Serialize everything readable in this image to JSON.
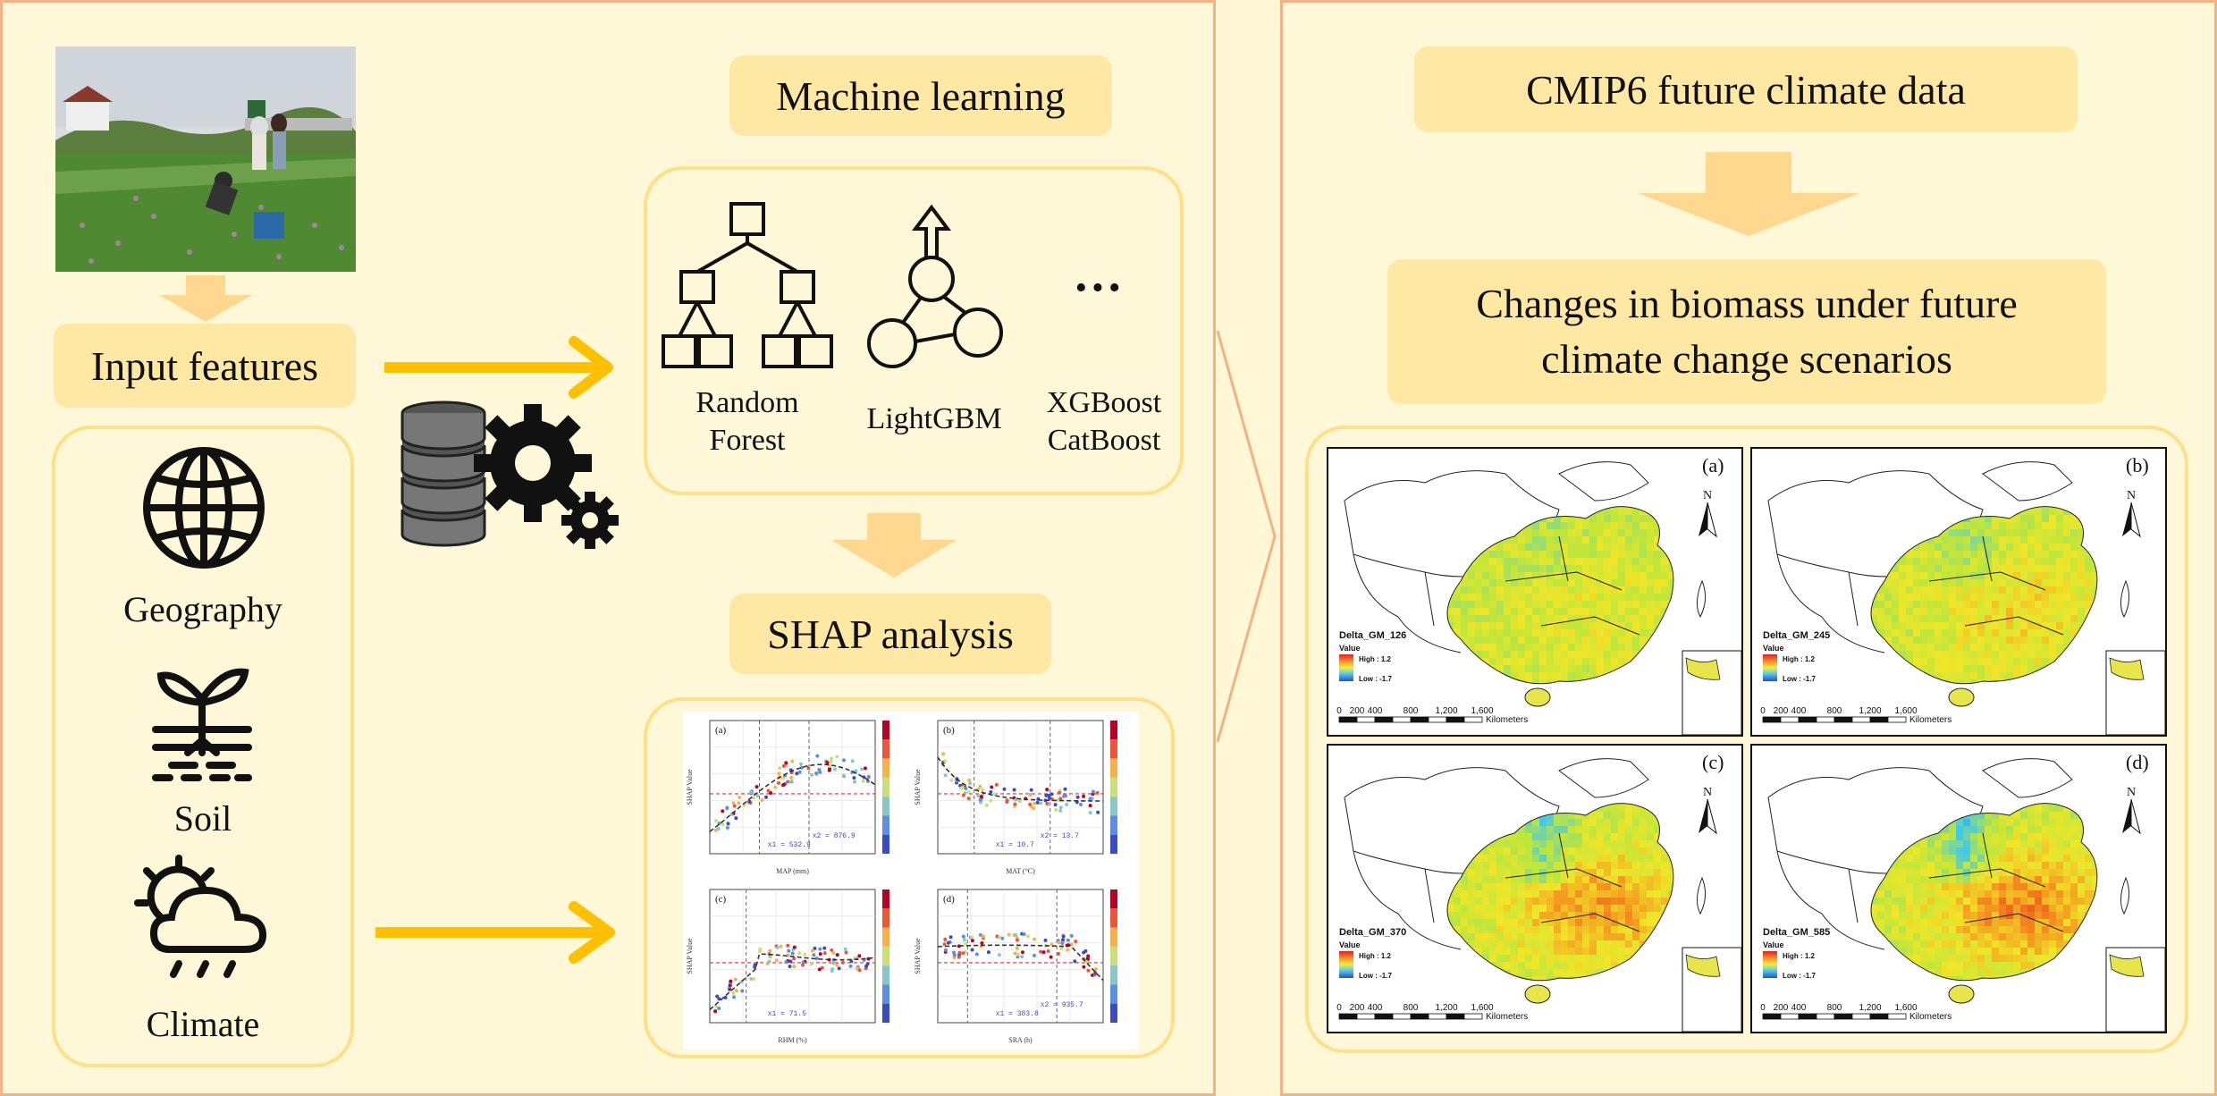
{
  "left_panel": {
    "input_features_label": "Input features",
    "feature_icons": [
      {
        "label": "Geography",
        "icon": "globe-icon"
      },
      {
        "label": "Soil",
        "icon": "seedling-soil-icon"
      },
      {
        "label": "Climate",
        "icon": "sun-cloud-rain-icon"
      }
    ],
    "machine_learning_label": "Machine learning",
    "models": [
      {
        "label_line1": "Random",
        "label_line2": "Forest",
        "icon": "decision-tree-icon"
      },
      {
        "label_line1": "LightGBM",
        "label_line2": "",
        "icon": "graph-arrow-icon"
      },
      {
        "label_line1": "XGBoost",
        "label_line2": "CatBoost",
        "icon": "ellipsis-icon"
      }
    ],
    "ellipsis": "···",
    "shap_label": "SHAP analysis",
    "shap_panels": [
      {
        "tag": "(a)",
        "xlabel": "MAP (mm)",
        "ann1": "x1 = 532.9",
        "ann2": "x2 = 876.9"
      },
      {
        "tag": "(b)",
        "xlabel": "MAT (°C)",
        "ann1": "x1 = 10.7",
        "ann2": "x2 = 13.7"
      },
      {
        "tag": "(c)",
        "xlabel": "RHM (%)",
        "ann1": "x1 = 71.5",
        "ann2": ""
      },
      {
        "tag": "(d)",
        "xlabel": "SRA (h)",
        "ann1": "x1 = 383.8",
        "ann2": "x2 = 935.7"
      }
    ],
    "shap_ylabel": "SHAP Value"
  },
  "right_panel": {
    "cmip6_label": "CMIP6 future climate data",
    "changes_label_line1": "Changes in biomass under future",
    "changes_label_line2": "climate change scenarios",
    "maps": [
      {
        "tag": "(a)",
        "title": "Delta_GM_126"
      },
      {
        "tag": "(b)",
        "title": "Delta_GM_245"
      },
      {
        "tag": "(c)",
        "title": "Delta_GM_370"
      },
      {
        "tag": "(d)",
        "title": "Delta_GM_585"
      }
    ],
    "legend_value": "Value",
    "legend_high": "High : 1.2",
    "legend_low": "Low : -1.7",
    "north": "N",
    "scale_ticks": [
      "0",
      "200",
      "400",
      "800",
      "1,200",
      "1,600"
    ],
    "scale_unit": "Kilometers"
  },
  "colors": {
    "panel_border": "#f2b287",
    "label_box": "#ffe8a3",
    "arrow_yellow": "#ffc000",
    "block_arrow": "#ffd78f"
  }
}
